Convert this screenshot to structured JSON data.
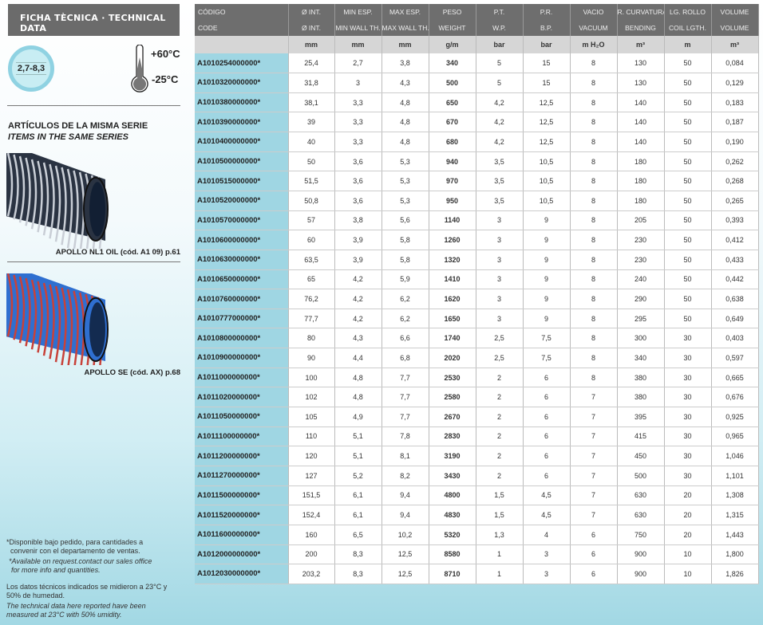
{
  "left": {
    "title": "FICHA TÈCNICA · TECHNICAL DATA",
    "badge": "2,7-8,3",
    "temp_high": "+60°C",
    "temp_low": "-25°C",
    "same_series_es": "ARTÍCULOS DE LA MISMA SERIE",
    "same_series_en": "ITEMS IN THE SAME SERIES",
    "products": [
      {
        "caption": "APOLLO NL1 OIL (cód. A1 09) p.61",
        "colors": {
          "body": "#2a3342",
          "stripe": "#c9ced6"
        }
      },
      {
        "caption": "APOLLO SE  (cód. AX) p.68",
        "colors": {
          "body": "#2f6fd0",
          "stripe": "#c8423a"
        }
      }
    ],
    "notes": {
      "es1": "*Disponible bajo pedido, para cantidades a",
      "es2": "convenir con el departamento de ventas.",
      "en1": "*Available on request.contact our sales office",
      "en2": "for more info and quantities.",
      "c1": "Los datos técnicos indicados se midieron a 23°C y",
      "c2": "50% de humedad.",
      "c3": "The technical data here reported have been",
      "c4": "measured at 23°C with 50% umidity."
    }
  },
  "table": {
    "header_es": [
      "CÓDIGO",
      "Ø INT.",
      "MIN ESP.",
      "MAX ESP.",
      "PESO",
      "P.T.",
      "P.R.",
      "VACIO",
      "R. CURVATURA",
      "LG. ROLLO",
      "VOLUME"
    ],
    "header_en": [
      "CODE",
      "Ø INT.",
      "MIN WALL TH.",
      "MAX WALL TH.",
      "WEIGHT",
      "W.P.",
      "B.P.",
      "VACUUM",
      "BENDING",
      "COIL LGTH.",
      "VOLUME"
    ],
    "units": [
      "",
      "mm",
      "mm",
      "mm",
      "g/m",
      "bar",
      "bar",
      "m H₂O",
      "m³",
      "m",
      "m³"
    ],
    "rows": [
      [
        "A1010254000000*",
        "25,4",
        "2,7",
        "3,8",
        "340",
        "5",
        "15",
        "8",
        "130",
        "50",
        "0,084"
      ],
      [
        "A1010320000000*",
        "31,8",
        "3",
        "4,3",
        "500",
        "5",
        "15",
        "8",
        "130",
        "50",
        "0,129"
      ],
      [
        "A1010380000000*",
        "38,1",
        "3,3",
        "4,8",
        "650",
        "4,2",
        "12,5",
        "8",
        "140",
        "50",
        "0,183"
      ],
      [
        "A1010390000000*",
        "39",
        "3,3",
        "4,8",
        "670",
        "4,2",
        "12,5",
        "8",
        "140",
        "50",
        "0,187"
      ],
      [
        "A1010400000000*",
        "40",
        "3,3",
        "4,8",
        "680",
        "4,2",
        "12,5",
        "8",
        "140",
        "50",
        "0,190"
      ],
      [
        "A1010500000000*",
        "50",
        "3,6",
        "5,3",
        "940",
        "3,5",
        "10,5",
        "8",
        "180",
        "50",
        "0,262"
      ],
      [
        "A1010515000000*",
        "51,5",
        "3,6",
        "5,3",
        "970",
        "3,5",
        "10,5",
        "8",
        "180",
        "50",
        "0,268"
      ],
      [
        "A1010520000000*",
        "50,8",
        "3,6",
        "5,3",
        "950",
        "3,5",
        "10,5",
        "8",
        "180",
        "50",
        "0,265"
      ],
      [
        "A1010570000000*",
        "57",
        "3,8",
        "5,6",
        "1140",
        "3",
        "9",
        "8",
        "205",
        "50",
        "0,393"
      ],
      [
        "A1010600000000*",
        "60",
        "3,9",
        "5,8",
        "1260",
        "3",
        "9",
        "8",
        "230",
        "50",
        "0,412"
      ],
      [
        "A1010630000000*",
        "63,5",
        "3,9",
        "5,8",
        "1320",
        "3",
        "9",
        "8",
        "230",
        "50",
        "0,433"
      ],
      [
        "A1010650000000*",
        "65",
        "4,2",
        "5,9",
        "1410",
        "3",
        "9",
        "8",
        "240",
        "50",
        "0,442"
      ],
      [
        "A1010760000000*",
        "76,2",
        "4,2",
        "6,2",
        "1620",
        "3",
        "9",
        "8",
        "290",
        "50",
        "0,638"
      ],
      [
        "A1010777000000*",
        "77,7",
        "4,2",
        "6,2",
        "1650",
        "3",
        "9",
        "8",
        "295",
        "50",
        "0,649"
      ],
      [
        "A1010800000000*",
        "80",
        "4,3",
        "6,6",
        "1740",
        "2,5",
        "7,5",
        "8",
        "300",
        "30",
        "0,403"
      ],
      [
        "A1010900000000*",
        "90",
        "4,4",
        "6,8",
        "2020",
        "2,5",
        "7,5",
        "8",
        "340",
        "30",
        "0,597"
      ],
      [
        "A1011000000000*",
        "100",
        "4,8",
        "7,7",
        "2530",
        "2",
        "6",
        "8",
        "380",
        "30",
        "0,665"
      ],
      [
        "A1011020000000*",
        "102",
        "4,8",
        "7,7",
        "2580",
        "2",
        "6",
        "7",
        "380",
        "30",
        "0,676"
      ],
      [
        "A1011050000000*",
        "105",
        "4,9",
        "7,7",
        "2670",
        "2",
        "6",
        "7",
        "395",
        "30",
        "0,925"
      ],
      [
        "A1011100000000*",
        "110",
        "5,1",
        "7,8",
        "2830",
        "2",
        "6",
        "7",
        "415",
        "30",
        "0,965"
      ],
      [
        "A1011200000000*",
        "120",
        "5,1",
        "8,1",
        "3190",
        "2",
        "6",
        "7",
        "450",
        "30",
        "1,046"
      ],
      [
        "A1011270000000*",
        "127",
        "5,2",
        "8,2",
        "3430",
        "2",
        "6",
        "7",
        "500",
        "30",
        "1,101"
      ],
      [
        "A1011500000000*",
        "151,5",
        "6,1",
        "9,4",
        "4800",
        "1,5",
        "4,5",
        "7",
        "630",
        "20",
        "1,308"
      ],
      [
        "A1011520000000*",
        "152,4",
        "6,1",
        "9,4",
        "4830",
        "1,5",
        "4,5",
        "7",
        "630",
        "20",
        "1,315"
      ],
      [
        "A1011600000000*",
        "160",
        "6,5",
        "10,2",
        "5320",
        "1,3",
        "4",
        "6",
        "750",
        "20",
        "1,443"
      ],
      [
        "A1012000000000*",
        "200",
        "8,3",
        "12,5",
        "8580",
        "1",
        "3",
        "6",
        "900",
        "10",
        "1,800"
      ],
      [
        "A1012030000000*",
        "203,2",
        "8,3",
        "12,5",
        "8710",
        "1",
        "3",
        "6",
        "900",
        "10",
        "1,826"
      ]
    ]
  }
}
